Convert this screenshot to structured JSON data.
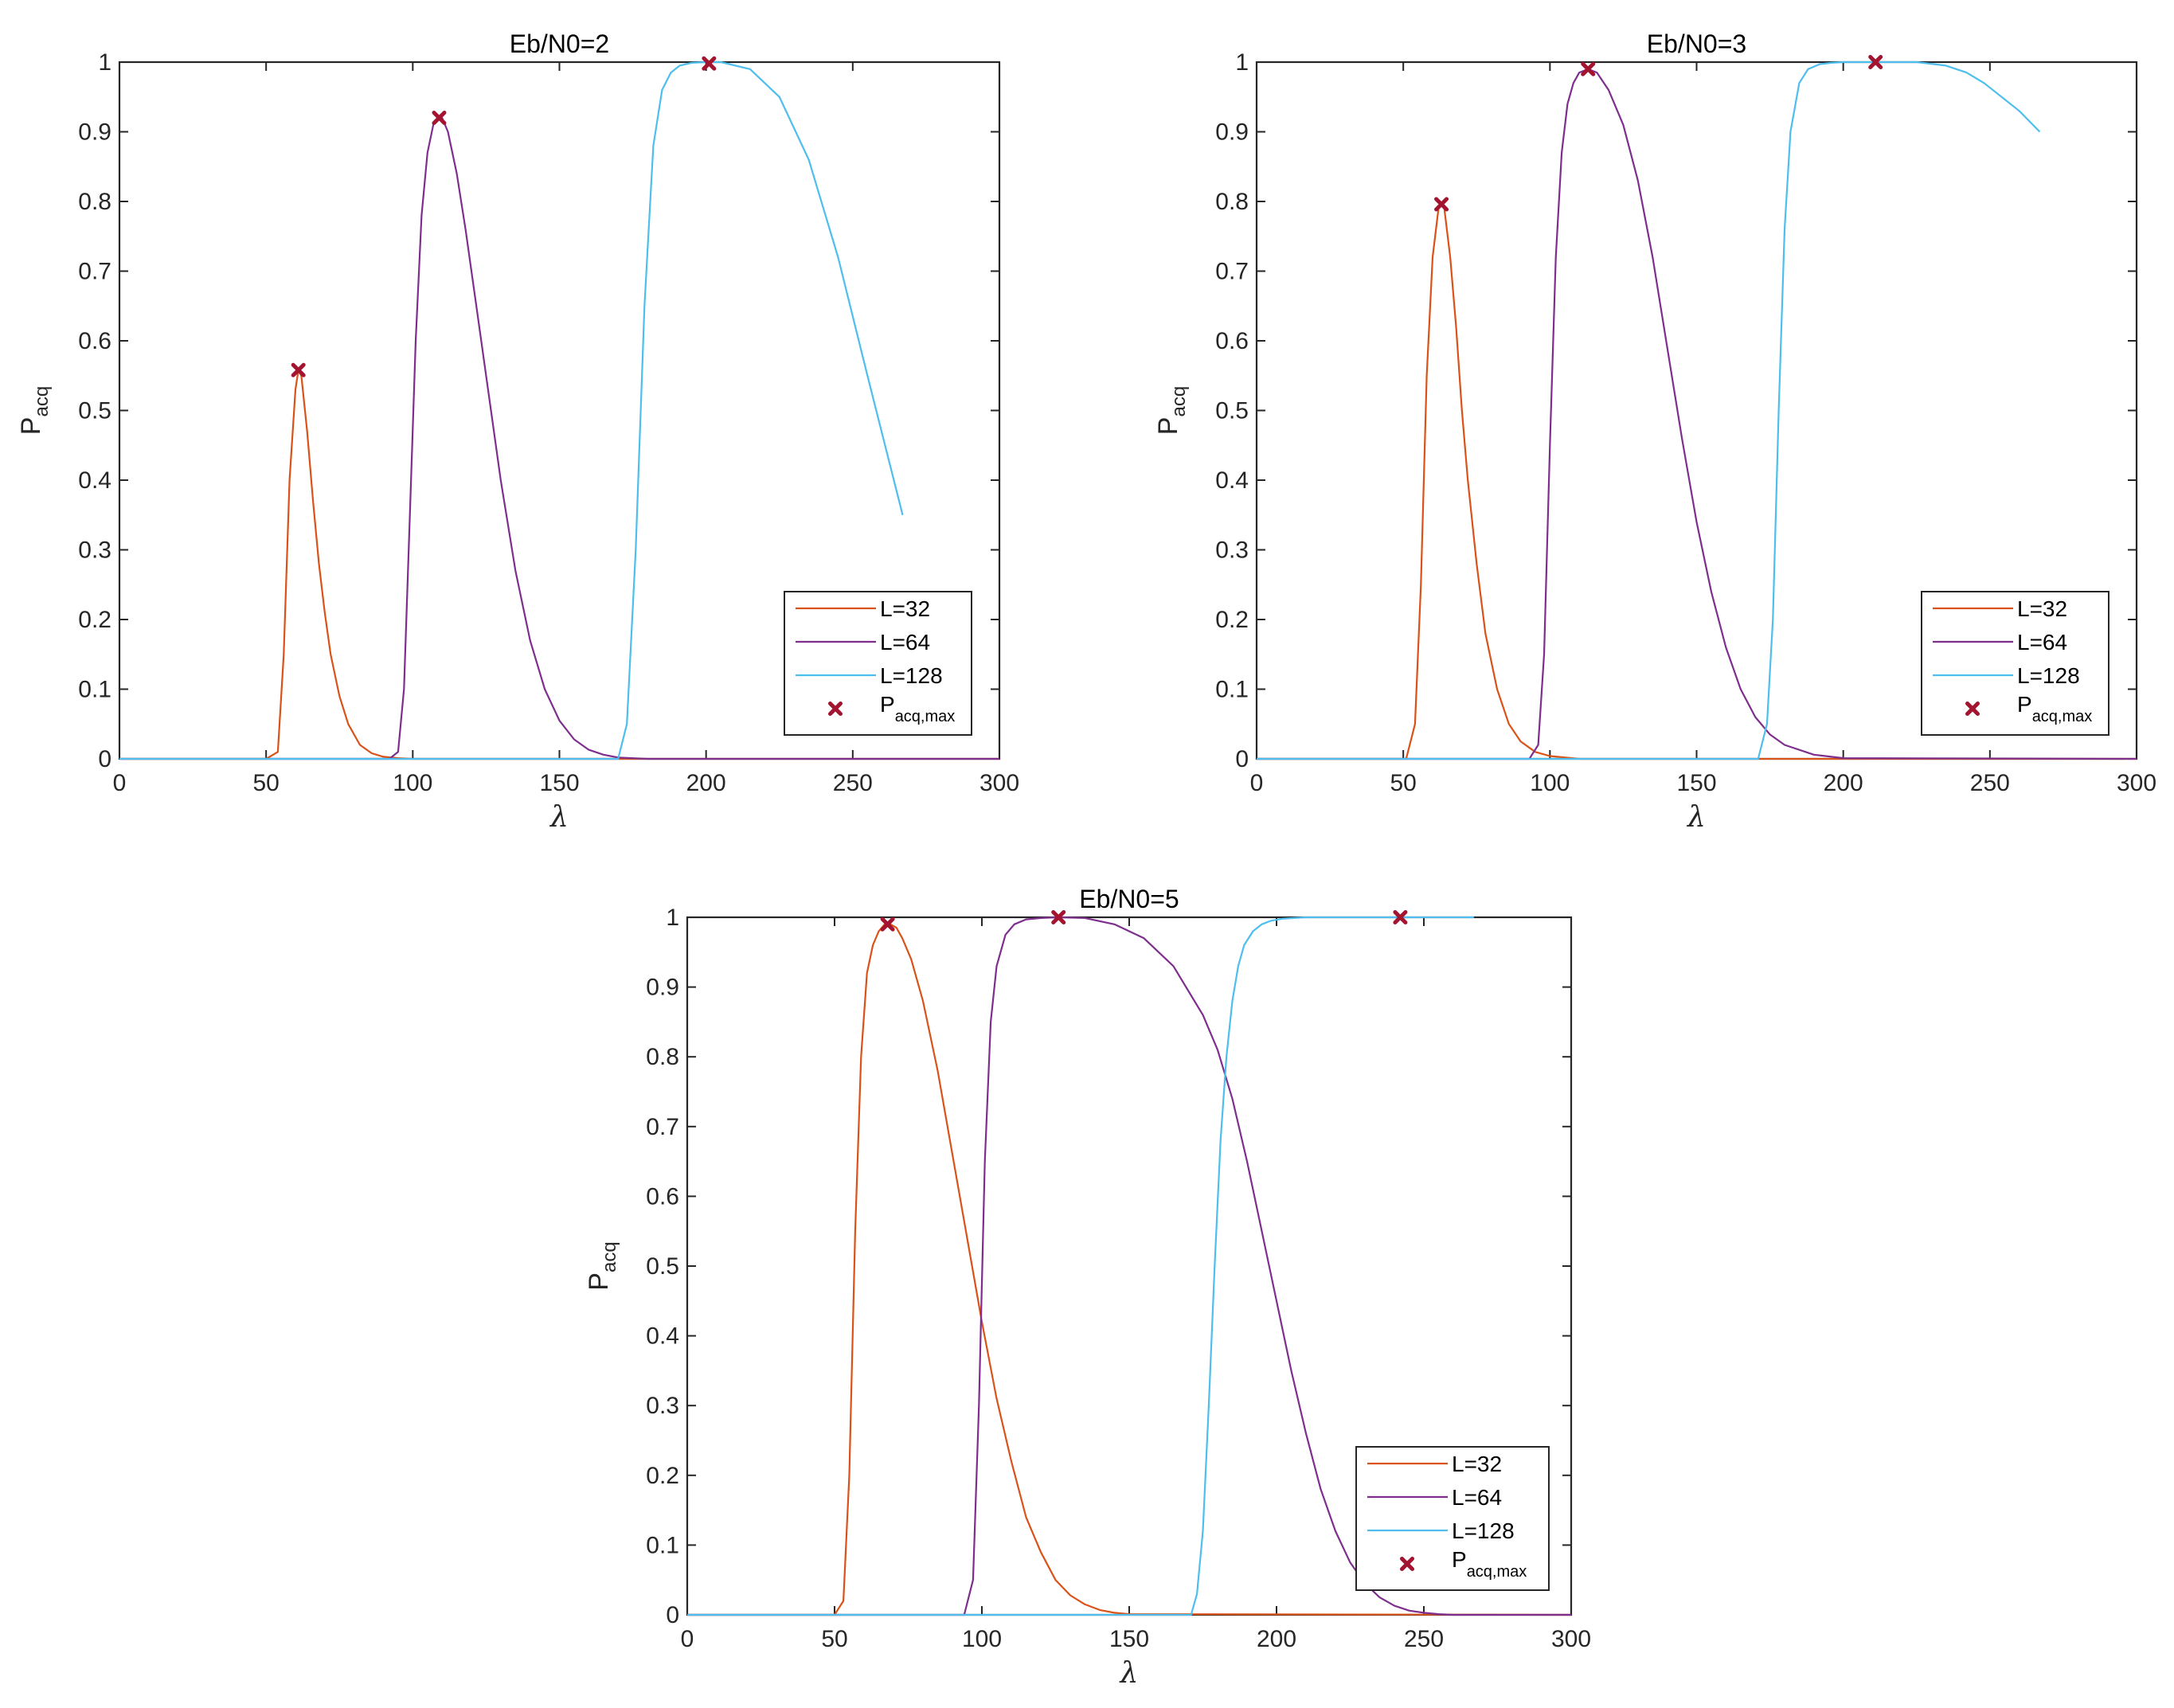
{
  "colors": {
    "L=32": "#D95319",
    "L=64": "#7E2F8E",
    "L=128": "#4DBEEE",
    "marker": "#A2142F",
    "axes": "#262626"
  },
  "chart_data": [
    {
      "type": "line",
      "title": "Eb/N0=2",
      "xlabel": "λ",
      "ylabel": "P",
      "ylabel_sub": "acq",
      "xlim": [
        0,
        300
      ],
      "ylim": [
        0,
        1
      ],
      "xticks": [
        "0",
        "50",
        "100",
        "150",
        "200",
        "250",
        "300"
      ],
      "yticks": [
        "0",
        "0.1",
        "0.2",
        "0.3",
        "0.4",
        "0.5",
        "0.6",
        "0.7",
        "0.8",
        "0.9",
        "1"
      ],
      "legend": [
        "L=32",
        "L=64",
        "L=128"
      ],
      "legend_marker": {
        "base": "P",
        "sub": "acq,max"
      },
      "series": [
        {
          "name": "L=32",
          "x": [
            0,
            50,
            54,
            56,
            58,
            60,
            61,
            62,
            64,
            66,
            68,
            70,
            72,
            75,
            78,
            82,
            86,
            90,
            95,
            100,
            300
          ],
          "values": [
            0,
            0,
            0.01,
            0.15,
            0.4,
            0.53,
            0.558,
            0.55,
            0.47,
            0.37,
            0.28,
            0.21,
            0.15,
            0.09,
            0.05,
            0.02,
            0.008,
            0.003,
            0.001,
            0,
            0
          ]
        },
        {
          "name": "L=64",
          "x": [
            0,
            92,
            95,
            97,
            99,
            101,
            103,
            105,
            107,
            109,
            110,
            112,
            115,
            118,
            122,
            126,
            130,
            135,
            140,
            145,
            150,
            155,
            160,
            165,
            170,
            180,
            300
          ],
          "values": [
            0,
            0,
            0.01,
            0.1,
            0.35,
            0.6,
            0.78,
            0.87,
            0.91,
            0.92,
            0.92,
            0.9,
            0.84,
            0.76,
            0.64,
            0.52,
            0.4,
            0.27,
            0.17,
            0.1,
            0.055,
            0.028,
            0.013,
            0.006,
            0.002,
            0,
            0
          ]
        },
        {
          "name": "L=128",
          "x": [
            0,
            170,
            173,
            176,
            179,
            182,
            185,
            188,
            191,
            195,
            200,
            205,
            215,
            225,
            235,
            245,
            255,
            267
          ],
          "values": [
            0,
            0,
            0.05,
            0.3,
            0.65,
            0.88,
            0.96,
            0.985,
            0.995,
            0.999,
            1.0,
            1.0,
            0.99,
            0.95,
            0.86,
            0.72,
            0.55,
            0.35
          ]
        }
      ],
      "max_points": [
        {
          "series": "L=32",
          "x": 61,
          "y": 0.558
        },
        {
          "series": "L=64",
          "x": 109,
          "y": 0.92
        },
        {
          "series": "L=128",
          "x": 201,
          "y": 0.998
        }
      ]
    },
    {
      "type": "line",
      "title": "Eb/N0=3",
      "xlabel": "λ",
      "ylabel": "P",
      "ylabel_sub": "acq",
      "xlim": [
        0,
        300
      ],
      "ylim": [
        0,
        1
      ],
      "xticks": [
        "0",
        "50",
        "100",
        "150",
        "200",
        "250",
        "300"
      ],
      "yticks": [
        "0",
        "0.1",
        "0.2",
        "0.3",
        "0.4",
        "0.5",
        "0.6",
        "0.7",
        "0.8",
        "0.9",
        "1"
      ],
      "legend": [
        "L=32",
        "L=64",
        "L=128"
      ],
      "legend_marker": {
        "base": "P",
        "sub": "acq,max"
      },
      "series": [
        {
          "name": "L=32",
          "x": [
            0,
            51,
            54,
            56,
            58,
            60,
            62,
            63,
            64,
            66,
            68,
            70,
            72,
            75,
            78,
            82,
            86,
            90,
            95,
            100,
            110,
            300
          ],
          "values": [
            0,
            0,
            0.05,
            0.25,
            0.55,
            0.72,
            0.79,
            0.796,
            0.79,
            0.72,
            0.62,
            0.5,
            0.4,
            0.28,
            0.18,
            0.1,
            0.05,
            0.025,
            0.01,
            0.004,
            0,
            0
          ]
        },
        {
          "name": "L=64",
          "x": [
            0,
            93,
            96,
            98,
            100,
            102,
            104,
            106,
            108,
            110,
            113,
            116,
            120,
            125,
            130,
            135,
            140,
            145,
            150,
            155,
            160,
            165,
            170,
            175,
            180,
            190,
            200,
            300
          ],
          "values": [
            0,
            0,
            0.02,
            0.15,
            0.45,
            0.72,
            0.87,
            0.94,
            0.97,
            0.985,
            0.99,
            0.985,
            0.96,
            0.91,
            0.83,
            0.72,
            0.59,
            0.46,
            0.34,
            0.24,
            0.16,
            0.1,
            0.06,
            0.035,
            0.02,
            0.006,
            0.001,
            0
          ]
        },
        {
          "name": "L=128",
          "x": [
            0,
            171,
            174,
            176,
            178,
            180,
            182,
            185,
            188,
            192,
            196,
            200,
            211,
            225,
            235,
            242,
            248,
            254,
            260,
            267
          ],
          "values": [
            0,
            0,
            0.05,
            0.2,
            0.5,
            0.76,
            0.9,
            0.97,
            0.99,
            0.997,
            0.999,
            1.0,
            1.0,
            1.0,
            0.995,
            0.985,
            0.97,
            0.95,
            0.93,
            0.9
          ]
        }
      ],
      "max_points": [
        {
          "series": "L=32",
          "x": 63,
          "y": 0.796
        },
        {
          "series": "L=64",
          "x": 113,
          "y": 0.99
        },
        {
          "series": "L=128",
          "x": 211,
          "y": 1.0
        }
      ]
    },
    {
      "type": "line",
      "title": "Eb/N0=5",
      "xlabel": "λ",
      "ylabel": "P",
      "ylabel_sub": "acq",
      "xlim": [
        0,
        300
      ],
      "ylim": [
        0,
        1
      ],
      "xticks": [
        "0",
        "50",
        "100",
        "150",
        "200",
        "250",
        "300"
      ],
      "yticks": [
        "0",
        "0.1",
        "0.2",
        "0.3",
        "0.4",
        "0.5",
        "0.6",
        "0.7",
        "0.8",
        "0.9",
        "1"
      ],
      "legend": [
        "L=32",
        "L=64",
        "L=128"
      ],
      "legend_marker": {
        "base": "P",
        "sub": "acq,max"
      },
      "series": [
        {
          "name": "L=32",
          "x": [
            0,
            50,
            53,
            55,
            57,
            59,
            61,
            63,
            65,
            67,
            69,
            71,
            73,
            76,
            80,
            85,
            90,
            95,
            100,
            105,
            110,
            115,
            120,
            125,
            130,
            135,
            140,
            145,
            150,
            300
          ],
          "values": [
            0,
            0,
            0.02,
            0.2,
            0.55,
            0.8,
            0.92,
            0.96,
            0.98,
            0.99,
            0.99,
            0.985,
            0.97,
            0.94,
            0.88,
            0.78,
            0.66,
            0.54,
            0.42,
            0.31,
            0.22,
            0.14,
            0.09,
            0.05,
            0.028,
            0.015,
            0.007,
            0.003,
            0.001,
            0
          ]
        },
        {
          "name": "L=64",
          "x": [
            0,
            94,
            97,
            99,
            101,
            103,
            105,
            108,
            111,
            115,
            120,
            126,
            135,
            145,
            155,
            165,
            175,
            180,
            185,
            190,
            195,
            200,
            205,
            210,
            215,
            220,
            225,
            230,
            235,
            240,
            245,
            250,
            255,
            260,
            300
          ],
          "values": [
            0,
            0,
            0.05,
            0.3,
            0.65,
            0.85,
            0.93,
            0.975,
            0.99,
            0.997,
            0.999,
            1.0,
            0.999,
            0.99,
            0.97,
            0.93,
            0.86,
            0.81,
            0.74,
            0.65,
            0.55,
            0.45,
            0.35,
            0.26,
            0.18,
            0.12,
            0.075,
            0.045,
            0.025,
            0.013,
            0.006,
            0.003,
            0.001,
            0,
            0
          ]
        },
        {
          "name": "L=128",
          "x": [
            0,
            171,
            173,
            175,
            177,
            179,
            181,
            183,
            185,
            187,
            189,
            192,
            195,
            198,
            202,
            206,
            210,
            220,
            242,
            267
          ],
          "values": [
            0,
            0,
            0.03,
            0.12,
            0.3,
            0.5,
            0.68,
            0.8,
            0.88,
            0.93,
            0.96,
            0.98,
            0.99,
            0.995,
            0.998,
            0.999,
            1.0,
            1.0,
            1.0,
            1.0
          ]
        }
      ],
      "max_points": [
        {
          "series": "L=32",
          "x": 68,
          "y": 0.99
        },
        {
          "series": "L=64",
          "x": 126,
          "y": 1.0
        },
        {
          "series": "L=128",
          "x": 242,
          "y": 1.0
        }
      ]
    }
  ]
}
